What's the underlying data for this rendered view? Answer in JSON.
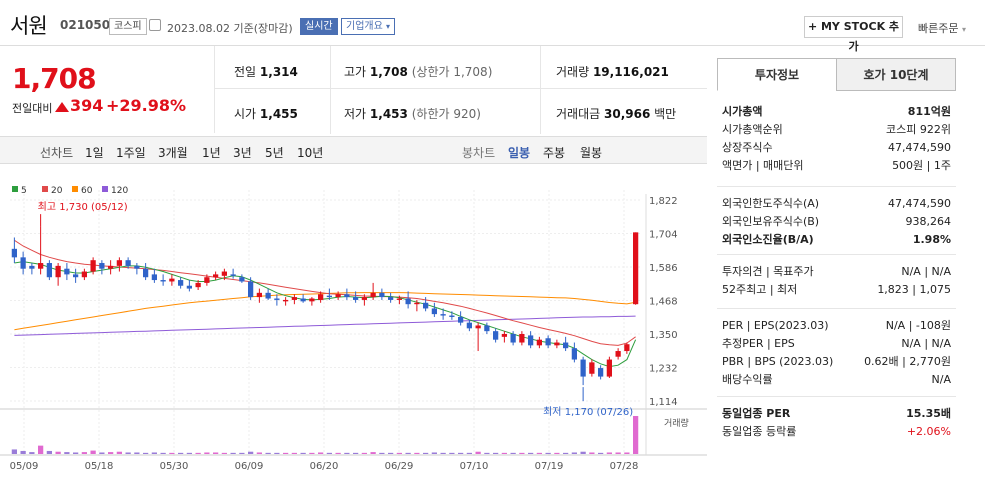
{
  "header": {
    "name": "서원",
    "code": "021050",
    "market": "코스피",
    "date": "2023.08.02 기준(장마감)",
    "realtime": "실시간",
    "company_info": "기업개요",
    "mystock_button": "+ MY STOCK 추가",
    "quick_order": "빠른주문"
  },
  "quote": {
    "price": "1,708",
    "change_label": "전일대비",
    "change": "394",
    "change_rate": "+29.98%",
    "prev_close_label": "전일",
    "prev_close": "1,314",
    "high_label": "고가",
    "high": "1,708",
    "high_note": "(상한가 1,708)",
    "volume_label": "거래량",
    "volume": "19,116,021",
    "open_label": "시가",
    "open": "1,455",
    "low_label": "저가",
    "low": "1,453",
    "low_note": "(하한가 920)",
    "amount_label": "거래대금",
    "amount": "30,966",
    "amount_unit": "백만"
  },
  "toolbar": {
    "line_chart": "선차트",
    "periods": [
      "1일",
      "1주일",
      "3개월",
      "1년",
      "3년",
      "5년",
      "10년"
    ],
    "candle_chart": "봉차트",
    "candle_periods": [
      "일봉",
      "주봉",
      "월봉"
    ]
  },
  "chart_data": {
    "type": "candlestick",
    "legend": [
      {
        "name": "5",
        "color": "#2e9e3e"
      },
      {
        "name": "20",
        "color": "#e04a4a"
      },
      {
        "name": "60",
        "color": "#ff8c00"
      },
      {
        "name": "120",
        "color": "#8e5bd8"
      }
    ],
    "y_ticks": [
      "1,822",
      "1,704",
      "1,586",
      "1,468",
      "1,350",
      "1,232",
      "1,114"
    ],
    "ylim": [
      1114,
      1822
    ],
    "x_ticks": [
      "05/09",
      "05/18",
      "05/30",
      "06/09",
      "06/20",
      "06/29",
      "07/10",
      "07/19",
      "07/28"
    ],
    "high_annotation": "최고 1,730 (05/12)",
    "low_annotation": "최저 1,170 (07/26)",
    "volume_label": "거래량",
    "candles": [
      [
        1650,
        1690,
        1600,
        1620
      ],
      [
        1620,
        1640,
        1560,
        1580
      ],
      [
        1590,
        1600,
        1560,
        1580
      ],
      [
        1580,
        1730,
        1560,
        1600
      ],
      [
        1600,
        1610,
        1540,
        1550
      ],
      [
        1550,
        1600,
        1520,
        1590
      ],
      [
        1580,
        1600,
        1540,
        1560
      ],
      [
        1560,
        1580,
        1530,
        1550
      ],
      [
        1550,
        1580,
        1540,
        1570
      ],
      [
        1570,
        1620,
        1560,
        1610
      ],
      [
        1600,
        1610,
        1560,
        1580
      ],
      [
        1580,
        1610,
        1560,
        1590
      ],
      [
        1590,
        1620,
        1570,
        1610
      ],
      [
        1610,
        1620,
        1580,
        1590
      ],
      [
        1590,
        1600,
        1560,
        1580
      ],
      [
        1580,
        1600,
        1540,
        1550
      ],
      [
        1560,
        1580,
        1530,
        1540
      ],
      [
        1540,
        1560,
        1520,
        1535
      ],
      [
        1535,
        1560,
        1520,
        1545
      ],
      [
        1540,
        1550,
        1510,
        1520
      ],
      [
        1520,
        1540,
        1500,
        1510
      ],
      [
        1515,
        1540,
        1505,
        1530
      ],
      [
        1530,
        1560,
        1520,
        1550
      ],
      [
        1550,
        1570,
        1540,
        1560
      ],
      [
        1555,
        1580,
        1540,
        1570
      ],
      [
        1560,
        1580,
        1545,
        1555
      ],
      [
        1550,
        1560,
        1530,
        1535
      ],
      [
        1535,
        1550,
        1470,
        1480
      ],
      [
        1480,
        1510,
        1460,
        1495
      ],
      [
        1495,
        1510,
        1470,
        1475
      ],
      [
        1475,
        1490,
        1450,
        1470
      ],
      [
        1465,
        1480,
        1450,
        1470
      ],
      [
        1470,
        1490,
        1455,
        1480
      ],
      [
        1475,
        1490,
        1460,
        1465
      ],
      [
        1465,
        1480,
        1450,
        1475
      ],
      [
        1470,
        1500,
        1460,
        1490
      ],
      [
        1485,
        1510,
        1470,
        1480
      ],
      [
        1480,
        1500,
        1470,
        1490
      ],
      [
        1490,
        1510,
        1470,
        1480
      ],
      [
        1480,
        1500,
        1460,
        1470
      ],
      [
        1470,
        1490,
        1450,
        1480
      ],
      [
        1480,
        1530,
        1470,
        1495
      ],
      [
        1495,
        1510,
        1470,
        1480
      ],
      [
        1480,
        1495,
        1460,
        1470
      ],
      [
        1470,
        1485,
        1455,
        1475
      ],
      [
        1475,
        1500,
        1440,
        1455
      ],
      [
        1455,
        1470,
        1430,
        1460
      ],
      [
        1460,
        1480,
        1430,
        1440
      ],
      [
        1440,
        1460,
        1410,
        1420
      ],
      [
        1420,
        1440,
        1400,
        1415
      ],
      [
        1415,
        1430,
        1400,
        1410
      ],
      [
        1410,
        1430,
        1380,
        1390
      ],
      [
        1390,
        1400,
        1360,
        1370
      ],
      [
        1370,
        1390,
        1290,
        1380
      ],
      [
        1380,
        1390,
        1350,
        1360
      ],
      [
        1360,
        1370,
        1320,
        1330
      ],
      [
        1340,
        1360,
        1320,
        1350
      ],
      [
        1350,
        1360,
        1310,
        1320
      ],
      [
        1320,
        1360,
        1310,
        1350
      ],
      [
        1345,
        1360,
        1300,
        1310
      ],
      [
        1310,
        1340,
        1300,
        1330
      ],
      [
        1335,
        1345,
        1300,
        1310
      ],
      [
        1310,
        1330,
        1300,
        1320
      ],
      [
        1320,
        1340,
        1290,
        1300
      ],
      [
        1300,
        1320,
        1250,
        1260
      ],
      [
        1260,
        1270,
        1170,
        1200
      ],
      [
        1210,
        1260,
        1200,
        1250
      ],
      [
        1230,
        1240,
        1190,
        1200
      ],
      [
        1200,
        1270,
        1195,
        1260
      ],
      [
        1270,
        1300,
        1260,
        1290
      ],
      [
        1290,
        1320,
        1280,
        1314
      ],
      [
        1455,
        1708,
        1453,
        1708
      ]
    ],
    "ma5": [
      1600,
      1605,
      1600,
      1595,
      1585,
      1575,
      1570,
      1565,
      1565,
      1570,
      1575,
      1580,
      1585,
      1590,
      1590,
      1585,
      1578,
      1570,
      1560,
      1550,
      1540,
      1535,
      1535,
      1540,
      1548,
      1555,
      1552,
      1540,
      1525,
      1510,
      1495,
      1485,
      1478,
      1472,
      1470,
      1472,
      1475,
      1480,
      1482,
      1480,
      1478,
      1480,
      1483,
      1482,
      1478,
      1470,
      1462,
      1455,
      1445,
      1435,
      1425,
      1412,
      1400,
      1390,
      1380,
      1370,
      1360,
      1350,
      1340,
      1333,
      1325,
      1320,
      1316,
      1312,
      1300,
      1280,
      1260,
      1245,
      1235,
      1240,
      1260,
      1330
    ],
    "ma20": [
      1680,
      1660,
      1645,
      1630,
      1620,
      1612,
      1605,
      1600,
      1596,
      1593,
      1590,
      1588,
      1586,
      1584,
      1582,
      1580,
      1577,
      1574,
      1570,
      1566,
      1562,
      1558,
      1554,
      1550,
      1546,
      1542,
      1538,
      1534,
      1530,
      1525,
      1520,
      1515,
      1510,
      1505,
      1500,
      1496,
      1492,
      1490,
      1488,
      1486,
      1484,
      1483,
      1482,
      1481,
      1480,
      1478,
      1475,
      1470,
      1465,
      1460,
      1454,
      1448,
      1440,
      1432,
      1424,
      1415,
      1406,
      1397,
      1389,
      1381,
      1373,
      1366,
      1359,
      1352,
      1344,
      1334,
      1324,
      1316,
      1312,
      1310,
      1318,
      1340
    ],
    "ma60": [
      1365,
      1370,
      1375,
      1380,
      1385,
      1390,
      1395,
      1400,
      1405,
      1410,
      1415,
      1420,
      1425,
      1430,
      1435,
      1440,
      1444,
      1448,
      1452,
      1456,
      1460,
      1463,
      1466,
      1469,
      1472,
      1475,
      1478,
      1481,
      1483,
      1485,
      1487,
      1488,
      1489,
      1490,
      1491,
      1492,
      1493,
      1494,
      1495,
      1495,
      1496,
      1496,
      1496,
      1496,
      1496,
      1495,
      1494,
      1493,
      1492,
      1491,
      1490,
      1489,
      1488,
      1487,
      1486,
      1485,
      1484,
      1483,
      1482,
      1481,
      1480,
      1479,
      1478,
      1477,
      1475,
      1472,
      1469,
      1465,
      1461,
      1458,
      1456,
      1462
    ],
    "ma120": [
      1345,
      1346,
      1347,
      1348,
      1349,
      1350,
      1351,
      1352,
      1353,
      1354,
      1355,
      1356,
      1357,
      1358,
      1359,
      1360,
      1361,
      1362,
      1363,
      1364,
      1365,
      1366,
      1367,
      1368,
      1369,
      1370,
      1371,
      1372,
      1373,
      1374,
      1375,
      1376,
      1377,
      1378,
      1379,
      1380,
      1381,
      1382,
      1383,
      1384,
      1385,
      1386,
      1387,
      1388,
      1389,
      1390,
      1391,
      1392,
      1393,
      1394,
      1395,
      1396,
      1397,
      1398,
      1399,
      1400,
      1401,
      1402,
      1403,
      1404,
      1405,
      1406,
      1407,
      1408,
      1409,
      1410,
      1410,
      1411,
      1411,
      1412,
      1412,
      1413
    ],
    "volume": [
      0.12,
      0.08,
      0.05,
      0.22,
      0.08,
      0.06,
      0.05,
      0.04,
      0.05,
      0.09,
      0.04,
      0.05,
      0.06,
      0.04,
      0.04,
      0.03,
      0.04,
      0.03,
      0.03,
      0.03,
      0.03,
      0.03,
      0.04,
      0.04,
      0.03,
      0.03,
      0.03,
      0.06,
      0.04,
      0.03,
      0.03,
      0.03,
      0.03,
      0.03,
      0.03,
      0.04,
      0.03,
      0.03,
      0.03,
      0.03,
      0.03,
      0.05,
      0.03,
      0.03,
      0.03,
      0.03,
      0.03,
      0.03,
      0.04,
      0.03,
      0.03,
      0.03,
      0.03,
      0.06,
      0.03,
      0.03,
      0.03,
      0.03,
      0.03,
      0.03,
      0.03,
      0.03,
      0.03,
      0.03,
      0.04,
      0.06,
      0.04,
      0.03,
      0.04,
      0.04,
      0.04,
      1.0
    ]
  },
  "invest_info": {
    "tab_active": "투자정보",
    "tab_other": "호가 10단계",
    "rows": [
      {
        "k": "시가총액",
        "v": "811억원",
        "bold": true
      },
      {
        "k": "시가총액순위",
        "v": "코스피 922위"
      },
      {
        "k": "상장주식수",
        "v": "47,474,590"
      },
      {
        "k": "액면가 | 매매단위",
        "v": "500원 | 1주"
      },
      {
        "k": "외국인한도주식수(A)",
        "v": "47,474,590"
      },
      {
        "k": "외국인보유주식수(B)",
        "v": "938,264"
      },
      {
        "k": "외국인소진율(B/A)",
        "v": "1.98%",
        "bold": true
      },
      {
        "k": "투자의견 | 목표주가",
        "v": "N/A | N/A"
      },
      {
        "k": "52주최고 | 최저",
        "v": "1,823 | 1,075"
      },
      {
        "k": "PER | EPS(2023.03)",
        "v": "N/A | -108원"
      },
      {
        "k": "추정PER | EPS",
        "v": "N/A | N/A"
      },
      {
        "k": "PBR | BPS (2023.03)",
        "v": "0.62배 | 2,770원"
      },
      {
        "k": "배당수익률",
        "v": "N/A"
      },
      {
        "k": "동일업종 PER",
        "v": "15.35배",
        "bold": true
      },
      {
        "k": "동일업종 등락률",
        "v": "+2.06%",
        "red": true
      }
    ]
  }
}
